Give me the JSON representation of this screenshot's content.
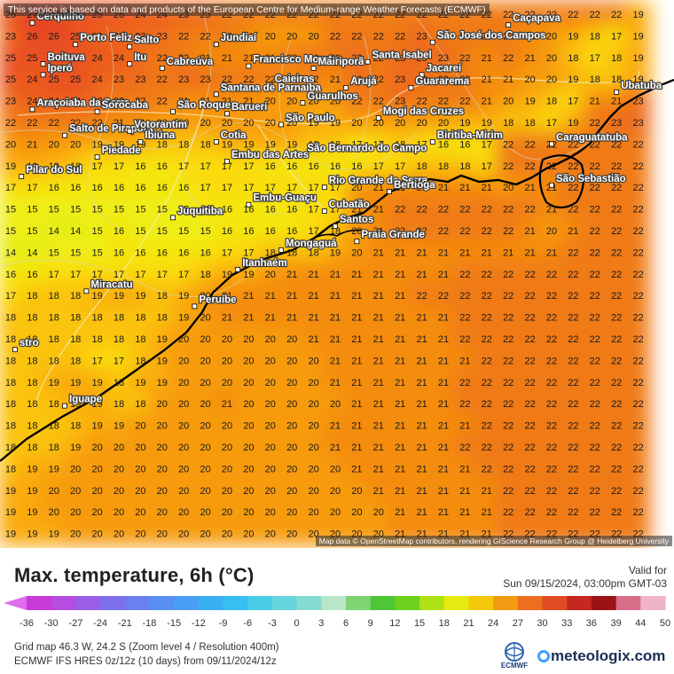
{
  "map": {
    "notice": "This service is based on data and products of the European Centre for Medium-range Weather Forecasts (ECMWF)",
    "attribution": "Map data © OpenStreetMap contributors, rendering GIScience Research Group @ Heidelberg University",
    "grid_rows": [
      [
        25,
        27,
        26,
        25,
        25,
        25,
        24,
        24,
        23,
        23,
        22,
        22,
        22,
        22,
        22,
        22,
        22,
        22,
        22,
        22,
        22,
        22,
        22,
        22,
        22,
        22,
        22,
        22,
        22,
        19
      ],
      [
        23,
        26,
        26,
        25,
        24,
        23,
        23,
        23,
        22,
        22,
        22,
        21,
        20,
        20,
        20,
        22,
        22,
        22,
        22,
        23,
        22,
        22,
        22,
        22,
        21,
        20,
        19,
        18,
        17,
        19
      ],
      [
        25,
        25,
        25,
        25,
        24,
        24,
        23,
        22,
        22,
        21,
        21,
        21,
        21,
        22,
        22,
        22,
        23,
        22,
        23,
        23,
        23,
        22,
        21,
        22,
        21,
        20,
        18,
        17,
        18,
        19
      ],
      [
        25,
        24,
        25,
        25,
        24,
        23,
        23,
        22,
        23,
        23,
        22,
        22,
        22,
        21,
        22,
        21,
        23,
        22,
        23,
        23,
        22,
        22,
        21,
        21,
        20,
        20,
        19,
        18,
        18,
        19
      ],
      [
        23,
        24,
        24,
        24,
        23,
        22,
        22,
        22,
        21,
        21,
        21,
        21,
        20,
        20,
        20,
        20,
        22,
        22,
        23,
        22,
        22,
        22,
        21,
        20,
        19,
        18,
        17,
        21,
        21,
        23
      ],
      [
        22,
        22,
        22,
        22,
        22,
        21,
        21,
        20,
        20,
        20,
        20,
        20,
        20,
        20,
        19,
        19,
        20,
        20,
        20,
        20,
        20,
        19,
        19,
        18,
        18,
        17,
        19,
        22,
        23,
        23
      ],
      [
        20,
        21,
        20,
        20,
        19,
        19,
        19,
        18,
        18,
        18,
        19,
        19,
        19,
        19,
        18,
        18,
        17,
        17,
        18,
        17,
        16,
        16,
        17,
        22,
        22,
        22,
        22,
        22,
        22,
        22
      ],
      [
        19,
        19,
        19,
        18,
        17,
        17,
        16,
        16,
        17,
        17,
        17,
        17,
        16,
        16,
        16,
        16,
        16,
        17,
        17,
        18,
        18,
        18,
        17,
        22,
        22,
        22,
        22,
        22,
        22,
        22
      ],
      [
        17,
        17,
        16,
        16,
        16,
        16,
        16,
        16,
        16,
        17,
        17,
        17,
        17,
        17,
        17,
        17,
        20,
        21,
        21,
        21,
        21,
        21,
        21,
        20,
        21,
        21,
        22,
        22,
        22,
        22
      ],
      [
        15,
        15,
        15,
        15,
        15,
        15,
        15,
        15,
        15,
        16,
        16,
        16,
        16,
        16,
        17,
        17,
        21,
        21,
        22,
        22,
        22,
        22,
        22,
        22,
        22,
        21,
        22,
        22,
        22,
        22
      ],
      [
        15,
        15,
        14,
        14,
        15,
        16,
        15,
        15,
        15,
        15,
        16,
        16,
        16,
        16,
        17,
        18,
        20,
        21,
        22,
        22,
        22,
        22,
        22,
        22,
        21,
        20,
        21,
        22,
        22,
        22
      ],
      [
        14,
        14,
        15,
        15,
        15,
        16,
        16,
        16,
        16,
        16,
        17,
        17,
        18,
        18,
        18,
        19,
        20,
        21,
        21,
        21,
        21,
        21,
        21,
        21,
        21,
        21,
        22,
        22,
        22,
        22
      ],
      [
        16,
        16,
        17,
        17,
        17,
        17,
        17,
        17,
        17,
        18,
        19,
        19,
        20,
        21,
        21,
        21,
        21,
        21,
        21,
        21,
        21,
        22,
        22,
        22,
        22,
        22,
        22,
        22,
        22,
        22
      ],
      [
        17,
        18,
        18,
        18,
        19,
        19,
        19,
        18,
        19,
        20,
        21,
        21,
        21,
        21,
        21,
        21,
        21,
        21,
        21,
        22,
        22,
        22,
        22,
        22,
        22,
        22,
        22,
        22,
        22,
        22
      ],
      [
        18,
        18,
        18,
        18,
        18,
        18,
        18,
        18,
        19,
        20,
        21,
        21,
        21,
        21,
        21,
        21,
        21,
        21,
        21,
        21,
        21,
        22,
        22,
        22,
        22,
        22,
        22,
        22,
        22,
        22
      ],
      [
        18,
        18,
        18,
        18,
        18,
        18,
        18,
        19,
        20,
        20,
        20,
        20,
        20,
        20,
        21,
        21,
        21,
        21,
        21,
        21,
        21,
        22,
        22,
        22,
        22,
        22,
        22,
        22,
        22,
        22
      ],
      [
        18,
        18,
        18,
        18,
        17,
        17,
        18,
        19,
        20,
        20,
        20,
        20,
        20,
        20,
        20,
        21,
        21,
        21,
        21,
        21,
        21,
        21,
        22,
        22,
        22,
        22,
        22,
        22,
        22,
        22
      ],
      [
        18,
        18,
        19,
        19,
        19,
        18,
        19,
        19,
        20,
        20,
        20,
        20,
        20,
        20,
        20,
        21,
        21,
        21,
        21,
        21,
        21,
        22,
        22,
        22,
        22,
        22,
        22,
        22,
        22,
        22
      ],
      [
        18,
        18,
        18,
        19,
        19,
        18,
        18,
        20,
        20,
        20,
        21,
        20,
        20,
        20,
        20,
        20,
        21,
        21,
        21,
        21,
        21,
        22,
        22,
        22,
        22,
        22,
        22,
        22,
        22,
        22
      ],
      [
        18,
        18,
        18,
        18,
        19,
        19,
        20,
        20,
        20,
        20,
        20,
        20,
        20,
        20,
        20,
        21,
        21,
        21,
        21,
        21,
        21,
        21,
        22,
        22,
        22,
        22,
        22,
        22,
        22,
        22
      ],
      [
        18,
        18,
        18,
        19,
        20,
        20,
        20,
        20,
        20,
        20,
        20,
        20,
        20,
        20,
        20,
        21,
        21,
        21,
        21,
        21,
        21,
        22,
        22,
        22,
        22,
        22,
        22,
        22,
        22,
        22
      ],
      [
        18,
        19,
        19,
        20,
        20,
        20,
        20,
        20,
        20,
        20,
        20,
        20,
        20,
        20,
        20,
        20,
        21,
        21,
        21,
        21,
        21,
        21,
        22,
        22,
        22,
        22,
        22,
        22,
        22,
        22
      ],
      [
        19,
        19,
        20,
        20,
        20,
        20,
        20,
        20,
        20,
        20,
        20,
        20,
        20,
        20,
        20,
        20,
        20,
        21,
        21,
        21,
        21,
        21,
        21,
        22,
        22,
        22,
        22,
        22,
        22,
        22
      ],
      [
        19,
        19,
        20,
        20,
        20,
        20,
        20,
        20,
        20,
        20,
        20,
        20,
        20,
        20,
        20,
        20,
        20,
        20,
        21,
        21,
        21,
        21,
        21,
        22,
        22,
        22,
        22,
        22,
        22,
        22
      ],
      [
        19,
        19,
        19,
        20,
        20,
        20,
        20,
        20,
        20,
        20,
        20,
        20,
        20,
        20,
        20,
        20,
        20,
        20,
        21,
        21,
        21,
        21,
        21,
        22,
        22,
        22,
        22,
        22,
        22,
        22
      ]
    ],
    "cities": [
      {
        "name": "Cerquilho",
        "col": 1,
        "row": 0.4
      },
      {
        "name": "Porto Feliz",
        "col": 3,
        "row": 1.4
      },
      {
        "name": "Salto",
        "col": 5.5,
        "row": 1.5
      },
      {
        "name": "Jundiaí",
        "col": 9.5,
        "row": 1.4
      },
      {
        "name": "São José dos Campos",
        "col": 19.5,
        "row": 1.3
      },
      {
        "name": "Caçapava",
        "col": 23,
        "row": 0.5
      },
      {
        "name": "Boituva",
        "col": 1.5,
        "row": 2.3
      },
      {
        "name": "Itu",
        "col": 5.5,
        "row": 2.3
      },
      {
        "name": "Cabreúva",
        "col": 7,
        "row": 2.5
      },
      {
        "name": "Francisco Morato",
        "col": 11,
        "row": 2.4
      },
      {
        "name": "Mairiporã",
        "col": 14,
        "row": 2.5
      },
      {
        "name": "Santa Isabel",
        "col": 16.5,
        "row": 2.2
      },
      {
        "name": "Jacareí",
        "col": 19,
        "row": 2.8
      },
      {
        "name": "Iperó",
        "col": 1.5,
        "row": 2.8
      },
      {
        "name": "Caieiras",
        "col": 12,
        "row": 3.3
      },
      {
        "name": "Arujá",
        "col": 15.5,
        "row": 3.4
      },
      {
        "name": "Guararema",
        "col": 18.5,
        "row": 3.4
      },
      {
        "name": "Santana de Parnaíba",
        "col": 9.5,
        "row": 3.7
      },
      {
        "name": "Guarulhos",
        "col": 13.5,
        "row": 4.1
      },
      {
        "name": "Ubatuba",
        "col": 28,
        "row": 3.6
      },
      {
        "name": "Araçoiaba da Serra",
        "col": 1,
        "row": 4.4
      },
      {
        "name": "Sorocaba",
        "col": 4,
        "row": 4.5
      },
      {
        "name": "São Roque",
        "col": 7.5,
        "row": 4.5
      },
      {
        "name": "Barueri",
        "col": 10,
        "row": 4.6
      },
      {
        "name": "São Paulo",
        "col": 12.5,
        "row": 5.1
      },
      {
        "name": "Mogi das Cruzes",
        "col": 17,
        "row": 4.8
      },
      {
        "name": "Salto de Pirapora",
        "col": 2.5,
        "row": 5.6
      },
      {
        "name": "Votorantim",
        "col": 5.5,
        "row": 5.4
      },
      {
        "name": "Ibiúna",
        "col": 6,
        "row": 5.9
      },
      {
        "name": "Cotia",
        "col": 9.5,
        "row": 5.9
      },
      {
        "name": "São Bernardo do Campo",
        "col": 13.5,
        "row": 6.5
      },
      {
        "name": "Biritiba-Mirim",
        "col": 19.5,
        "row": 5.9
      },
      {
        "name": "Caraguatatuba",
        "col": 25,
        "row": 6.0
      },
      {
        "name": "Piedade",
        "col": 4,
        "row": 6.6
      },
      {
        "name": "Embu das Artes",
        "col": 10,
        "row": 6.8
      },
      {
        "name": "Pilar do Sul",
        "col": 0.5,
        "row": 7.5
      },
      {
        "name": "Rio Grande da Serra",
        "col": 14.5,
        "row": 8.0
      },
      {
        "name": "Bertioga",
        "col": 17.5,
        "row": 8.2
      },
      {
        "name": "São Sebastião",
        "col": 25,
        "row": 7.9
      },
      {
        "name": "Embu-Guaçu",
        "col": 11,
        "row": 8.8
      },
      {
        "name": "Juquitiba",
        "col": 7.5,
        "row": 9.4
      },
      {
        "name": "Cubatão",
        "col": 14.5,
        "row": 9.1
      },
      {
        "name": "Santos",
        "col": 15,
        "row": 9.8
      },
      {
        "name": "Praia Grande",
        "col": 16,
        "row": 10.5
      },
      {
        "name": "Mongaguá",
        "col": 12.5,
        "row": 10.9
      },
      {
        "name": "Itanhaém",
        "col": 10.5,
        "row": 11.8
      },
      {
        "name": "Miracatu",
        "col": 3.5,
        "row": 12.8
      },
      {
        "name": "Peruíbe",
        "col": 8.5,
        "row": 13.5
      },
      {
        "name": "stro",
        "col": 0.2,
        "row": 15.5
      },
      {
        "name": "Iguape",
        "col": 2.5,
        "row": 18.1
      }
    ]
  },
  "legend": {
    "title": "Max. temperature, 6h (°C)",
    "valid_label": "Valid for",
    "valid_time": "Sun 09/15/2024, 03:00pm GMT-03",
    "ticks": [
      "-36",
      "-30",
      "-27",
      "-24",
      "-21",
      "-18",
      "-15",
      "-12",
      "-9",
      "-6",
      "-3",
      "0",
      "3",
      "6",
      "9",
      "12",
      "15",
      "18",
      "21",
      "24",
      "27",
      "30",
      "33",
      "36",
      "39",
      "44",
      "50"
    ]
  },
  "footer": {
    "grid_info": "Grid map 46.3 W, 24.2 S (Zoom level 4 / Resolution 400m)",
    "model_info": "ECMWF IFS HRES 0z/12z (10 days) from 09/11/2024/12z",
    "ecmwf_label": "ECMWF",
    "brand": "meteologix.com"
  }
}
